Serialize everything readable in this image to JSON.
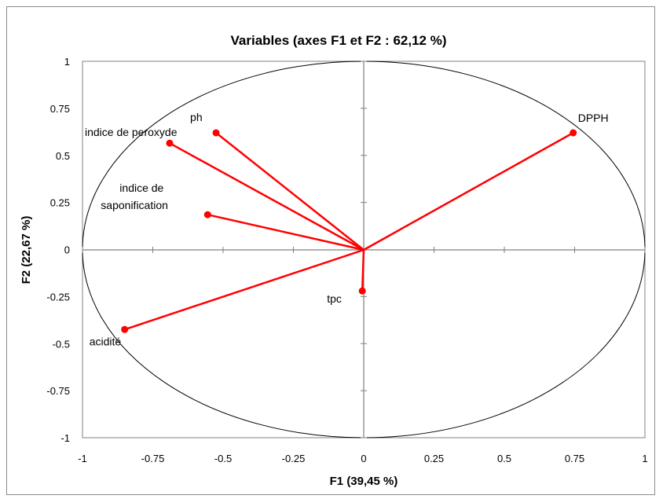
{
  "chart_data": {
    "type": "scatter",
    "title": "Variables (axes F1 et F2 : 62,12 %)",
    "xlabel": "F1 (39,45 %)",
    "ylabel": "F2 (22,67 %)",
    "xlim": [
      -1,
      1
    ],
    "ylim": [
      -1,
      1
    ],
    "xticks": [
      "-1",
      "-0.75",
      "-0.5",
      "-0.25",
      "0",
      "0.25",
      "0.5",
      "0.75",
      "1"
    ],
    "yticks": [
      "1",
      "0.75",
      "0.5",
      "0.25",
      "0",
      "-0.25",
      "-0.5",
      "-0.75",
      "-1"
    ],
    "correlation_circle": true,
    "vector_color": "#ff0000",
    "points": [
      {
        "label": "DPPH",
        "x": 0.745,
        "y": 0.62
      },
      {
        "label": "ph",
        "x": -0.525,
        "y": 0.62
      },
      {
        "label": "indice de peroxyde",
        "x": -0.69,
        "y": 0.565
      },
      {
        "label": "indice de saponification",
        "label_lines": [
          "indice de",
          "saponification"
        ],
        "x": -0.555,
        "y": 0.185
      },
      {
        "label": "tpc",
        "x": -0.005,
        "y": -0.22
      },
      {
        "label": "acidité",
        "x": -0.85,
        "y": -0.425
      }
    ]
  }
}
